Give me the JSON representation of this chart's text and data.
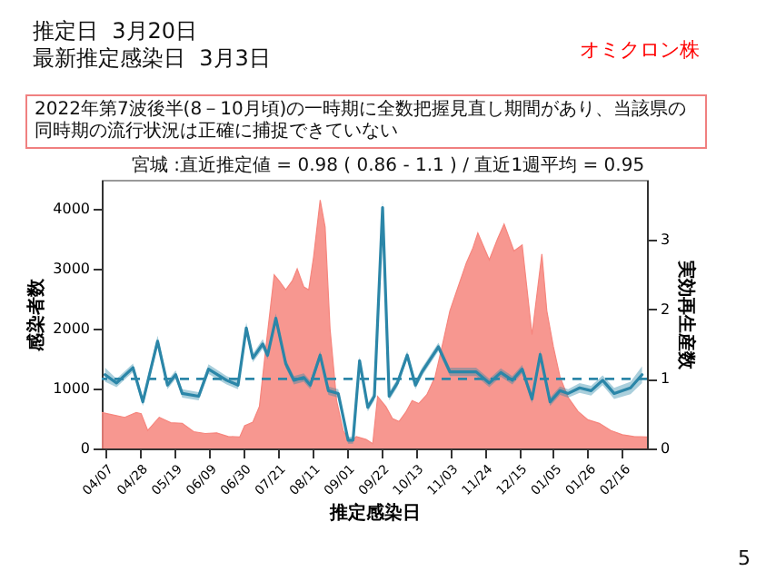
{
  "chart_data": {
    "type": "area",
    "title": "推定日  3月20日",
    "subtitle": "最新推定感染日  3月3日",
    "annotations": [
      "オミクロン株",
      "2022年第7波後半(8－10月頃)の一時期に全数把握見直し期間があり、当該県の同時期の流行状況は正確に捕捉できていない",
      "宮城 :直近推定値 = 0.98 ( 0.86 - 1.1 ) / 直近1週平均 = 0.95",
      "5"
    ],
    "xlabel": "推定感染日",
    "ylabel": "感染者数",
    "y2label": "実効再生産数",
    "xlim": [
      "2022-04-05",
      "2023-03-03"
    ],
    "xticks": [
      {
        "value": "2022-04-07",
        "label": "04/07"
      },
      {
        "value": "2022-04-28",
        "label": "04/28"
      },
      {
        "value": "2022-05-19",
        "label": "05/19"
      },
      {
        "value": "2022-06-09",
        "label": "06/09"
      },
      {
        "value": "2022-06-30",
        "label": "06/30"
      },
      {
        "value": "2022-07-21",
        "label": "07/21"
      },
      {
        "value": "2022-08-11",
        "label": "08/11"
      },
      {
        "value": "2022-09-01",
        "label": "09/01"
      },
      {
        "value": "2022-09-22",
        "label": "09/22"
      },
      {
        "value": "2022-10-13",
        "label": "10/13"
      },
      {
        "value": "2022-11-03",
        "label": "11/03"
      },
      {
        "value": "2022-11-24",
        "label": "11/24"
      },
      {
        "value": "2022-12-15",
        "label": "12/15"
      },
      {
        "value": "2023-01-05",
        "label": "01/05"
      },
      {
        "value": "2023-01-26",
        "label": "01/26"
      },
      {
        "value": "2023-02-16",
        "label": "02/16"
      }
    ],
    "ylim": [
      0,
      4490
    ],
    "yticks": [
      0,
      1000,
      2000,
      3000,
      4000
    ],
    "y2lim": [
      0,
      3.86
    ],
    "y2ticks": [
      0,
      1,
      2,
      3
    ],
    "ref_lines": [
      {
        "axis": "y2",
        "value": 1,
        "color": "#2b86a8",
        "line_style": "dashed"
      }
    ],
    "series": [
      {
        "color": "#f6857d",
        "x": [
          "2022-04-05",
          "2022-04-12",
          "2022-04-19",
          "2022-04-26",
          "2022-04-29",
          "2022-05-03",
          "2022-05-10",
          "2022-05-17",
          "2022-05-24",
          "2022-05-31",
          "2022-06-07",
          "2022-06-14",
          "2022-06-21",
          "2022-06-28",
          "2022-07-01",
          "2022-07-06",
          "2022-07-10",
          "2022-07-14",
          "2022-07-19",
          "2022-07-22",
          "2022-07-26",
          "2022-07-30",
          "2022-08-02",
          "2022-08-06",
          "2022-08-09",
          "2022-08-12",
          "2022-08-16",
          "2022-08-19",
          "2022-08-22",
          "2022-08-26",
          "2022-08-30",
          "2022-09-03",
          "2022-09-07",
          "2022-09-13",
          "2022-09-17",
          "2022-09-20",
          "2022-09-25",
          "2022-09-29",
          "2022-10-03",
          "2022-10-07",
          "2022-10-11",
          "2022-10-15",
          "2022-10-20",
          "2022-10-25",
          "2022-10-30",
          "2022-11-03",
          "2022-11-08",
          "2022-11-13",
          "2022-11-17",
          "2022-11-20",
          "2022-11-27",
          "2022-12-02",
          "2022-12-06",
          "2022-12-12",
          "2022-12-17",
          "2022-12-23",
          "2022-12-29",
          "2023-01-01",
          "2023-01-05",
          "2023-01-09",
          "2023-01-14",
          "2023-01-20",
          "2023-01-26",
          "2023-02-02",
          "2023-02-09",
          "2023-02-16",
          "2023-02-23",
          "2023-03-03"
        ],
        "values": [
          600,
          560,
          520,
          600,
          580,
          300,
          520,
          430,
          420,
          280,
          250,
          260,
          200,
          190,
          380,
          440,
          700,
          1700,
          2900,
          2800,
          2650,
          2800,
          3000,
          2700,
          2650,
          3200,
          4150,
          3700,
          2000,
          800,
          300,
          100,
          200,
          150,
          80,
          870,
          700,
          500,
          450,
          600,
          800,
          750,
          900,
          1200,
          1800,
          2300,
          2700,
          3100,
          3350,
          3600,
          3150,
          3500,
          3750,
          3300,
          3400,
          1900,
          3250,
          2300,
          1700,
          1200,
          850,
          620,
          480,
          420,
          300,
          230,
          200,
          190
        ]
      },
      {
        "type": "line",
        "axis": "y2",
        "color": "#2b86a8",
        "x": [
          "2022-04-07",
          "2022-04-14",
          "2022-04-24",
          "2022-04-30",
          "2022-05-09",
          "2022-05-15",
          "2022-05-20",
          "2022-05-24",
          "2022-06-03",
          "2022-06-09",
          "2022-06-20",
          "2022-06-27",
          "2022-07-02",
          "2022-07-06",
          "2022-07-12",
          "2022-07-15",
          "2022-07-20",
          "2022-07-26",
          "2022-07-31",
          "2022-08-06",
          "2022-08-10",
          "2022-08-16",
          "2022-08-21",
          "2022-08-27",
          "2022-09-02",
          "2022-09-05",
          "2022-09-09",
          "2022-09-14",
          "2022-09-18",
          "2022-09-23",
          "2022-09-27",
          "2022-10-02",
          "2022-10-08",
          "2022-10-13",
          "2022-10-17",
          "2022-10-27",
          "2022-11-03",
          "2022-11-12",
          "2022-11-19",
          "2022-11-27",
          "2022-12-04",
          "2022-12-11",
          "2022-12-17",
          "2022-12-23",
          "2022-12-28",
          "2023-01-03",
          "2023-01-09",
          "2023-01-14",
          "2023-01-21",
          "2023-01-28",
          "2023-02-04",
          "2023-02-11",
          "2023-02-21",
          "2023-02-28"
        ],
        "values": [
          1.06,
          0.94,
          1.16,
          0.67,
          1.54,
          0.91,
          1.06,
          0.79,
          0.75,
          1.14,
          0.98,
          0.91,
          1.73,
          1.3,
          1.5,
          1.34,
          1.87,
          1.22,
          0.98,
          1.02,
          0.91,
          1.34,
          0.83,
          0.79,
          0.12,
          0.12,
          1.26,
          0.59,
          0.75,
          3.46,
          0.75,
          0.94,
          1.34,
          0.91,
          1.1,
          1.46,
          1.1,
          1.1,
          1.1,
          0.94,
          1.09,
          0.98,
          1.14,
          0.71,
          1.35,
          0.67,
          0.83,
          0.79,
          0.87,
          0.83,
          0.98,
          0.79,
          0.87,
          1.06
        ],
        "lower": [
          0.96,
          0.88,
          1.1,
          0.61,
          1.46,
          0.85,
          1.0,
          0.73,
          0.69,
          1.07,
          0.92,
          0.85,
          1.65,
          1.24,
          1.43,
          1.28,
          1.8,
          1.16,
          0.92,
          0.96,
          0.85,
          1.28,
          0.77,
          0.73,
          0.07,
          0.07,
          1.2,
          0.53,
          0.69,
          3.35,
          0.69,
          0.88,
          1.28,
          0.85,
          1.04,
          1.4,
          1.04,
          1.04,
          1.04,
          0.88,
          1.03,
          0.92,
          1.08,
          0.65,
          1.29,
          0.61,
          0.77,
          0.73,
          0.8,
          0.76,
          0.91,
          0.71,
          0.78,
          0.94
        ],
        "upper": [
          1.16,
          1.0,
          1.22,
          0.73,
          1.62,
          0.97,
          1.12,
          0.85,
          0.81,
          1.21,
          1.04,
          0.97,
          1.81,
          1.36,
          1.57,
          1.4,
          1.94,
          1.28,
          1.04,
          1.08,
          0.97,
          1.4,
          0.89,
          0.85,
          0.17,
          0.17,
          1.32,
          0.65,
          0.81,
          3.57,
          0.81,
          1.0,
          1.4,
          0.97,
          1.16,
          1.52,
          1.16,
          1.16,
          1.16,
          1.0,
          1.15,
          1.04,
          1.2,
          0.77,
          1.41,
          0.73,
          0.89,
          0.85,
          0.94,
          0.9,
          1.05,
          0.87,
          0.96,
          1.18
        ]
      }
    ]
  }
}
